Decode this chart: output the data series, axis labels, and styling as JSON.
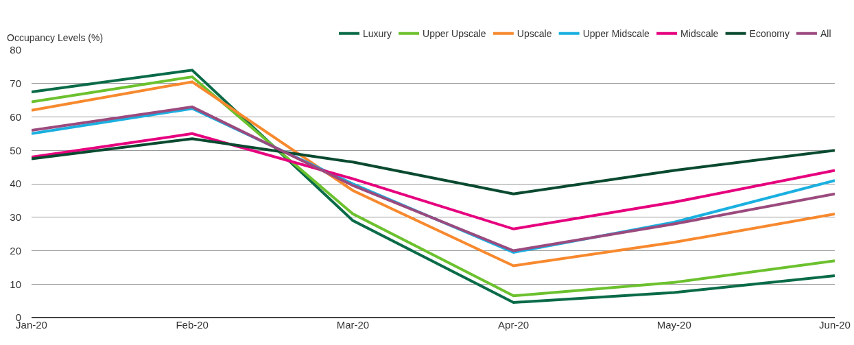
{
  "chart_data": {
    "type": "line",
    "ylabel": "Occupancy Levels (%)",
    "categories": [
      "Jan-20",
      "Feb-20",
      "Mar-20",
      "Apr-20",
      "May-20",
      "Jun-20"
    ],
    "series": [
      {
        "name": "Luxury",
        "color": "#0a6b48",
        "values": [
          67.5,
          74,
          29,
          4.5,
          7.5,
          12.5
        ]
      },
      {
        "name": "Upper Upscale",
        "color": "#6cc12e",
        "values": [
          64.5,
          72,
          31,
          6.5,
          10.5,
          17
        ]
      },
      {
        "name": "Upscale",
        "color": "#f7892e",
        "values": [
          62,
          70.5,
          38,
          15.5,
          22.5,
          31
        ]
      },
      {
        "name": "Upper Midscale",
        "color": "#1ab0e0",
        "values": [
          55,
          62.5,
          40,
          19.5,
          28.5,
          41
        ]
      },
      {
        "name": "Midscale",
        "color": "#e6007e",
        "values": [
          48,
          55,
          41.5,
          26.5,
          34.5,
          44
        ]
      },
      {
        "name": "Economy",
        "color": "#0a4a30",
        "values": [
          47.5,
          53.5,
          46.5,
          37,
          44,
          50
        ]
      },
      {
        "name": "All",
        "color": "#9b4a7e",
        "values": [
          56,
          63,
          39.5,
          20,
          28,
          37
        ]
      }
    ],
    "ylim": [
      0,
      80
    ],
    "yticks": [
      0,
      10,
      20,
      30,
      40,
      50,
      60,
      70,
      80
    ],
    "grid": "y",
    "legend": "top right",
    "marker": "none",
    "line_style": "solid"
  }
}
